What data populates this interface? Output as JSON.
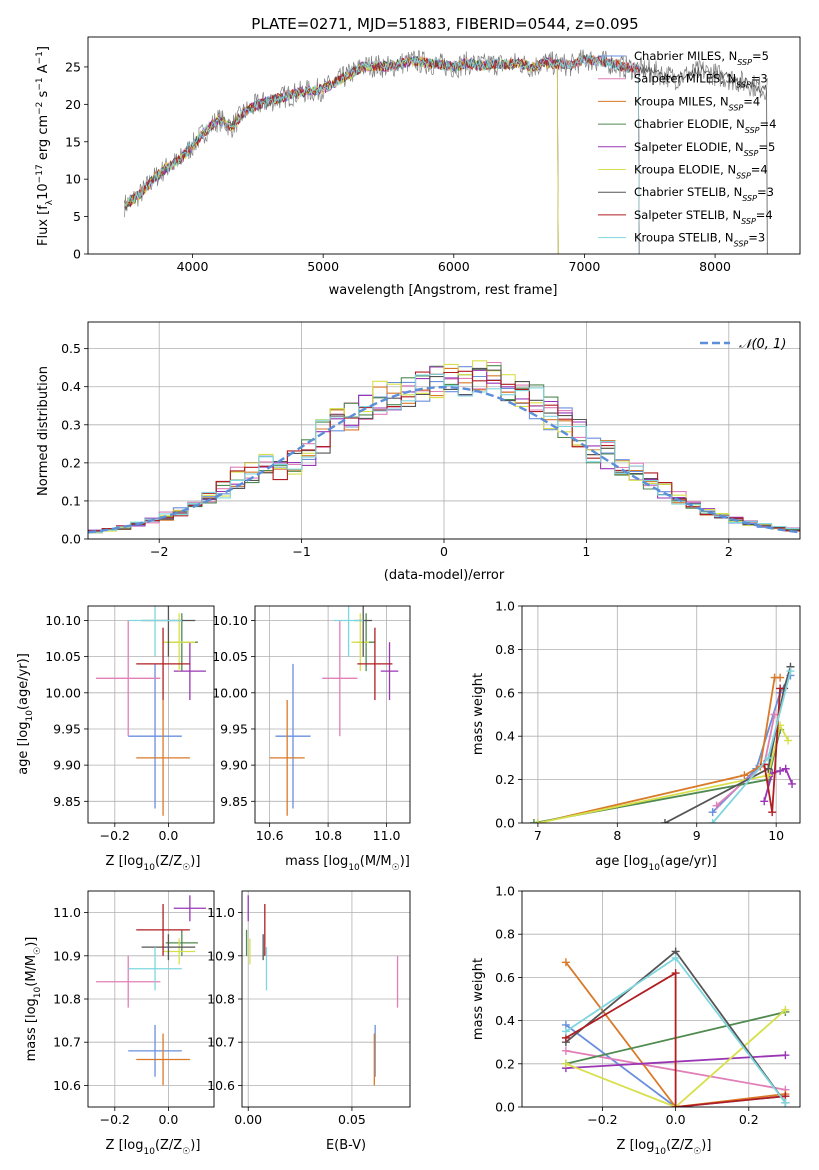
{
  "title": "PLATE=0271, MJD=51883, FIBERID=0544, z=0.095",
  "colors": {
    "chabrier_miles": "#6a8fdc",
    "salpeter_miles": "#e07fb8",
    "kroupa_miles": "#d97a28",
    "chabrier_elodie": "#4f8a4f",
    "salpeter_elodie": "#9a36b5",
    "kroupa_elodie": "#d7e04a",
    "chabrier_stelib": "#555555",
    "salpeter_stelib": "#b01e23",
    "kroupa_stelib": "#7fd6de",
    "data": "#808080",
    "normal_curve": "#5b8fd9"
  },
  "chart_data": [
    {
      "type": "line",
      "id": "spectrum",
      "xlabel": "wavelength [Angstrom, rest frame]",
      "ylabel_parts": [
        "Flux [f",
        "λ",
        "10",
        "−17",
        " erg cm",
        "−2",
        " s",
        "−1",
        " A",
        "−1",
        "]"
      ],
      "xlim": [
        3200,
        8650
      ],
      "ylim": [
        0,
        29
      ],
      "xticks": [
        4000,
        5000,
        6000,
        7000,
        8000
      ],
      "yticks": [
        0,
        5,
        10,
        15,
        20,
        25
      ],
      "grid": false,
      "legend_position": "upper right",
      "continuum": {
        "x": [
          3480,
          3600,
          3700,
          3800,
          3900,
          4000,
          4100,
          4200,
          4300,
          4400,
          4500,
          4600,
          4700,
          4800,
          4900,
          5000,
          5100,
          5200,
          5300,
          5400,
          5500,
          5600,
          5700,
          5800,
          5900,
          6000,
          6100,
          6200,
          6300,
          6400,
          6500,
          6600,
          6700,
          6800,
          6900,
          7000,
          7100,
          7200,
          7300,
          7400,
          7500,
          7600,
          7700,
          7800,
          7900,
          8000,
          8100,
          8200,
          8300,
          8400
        ],
        "y": [
          6.5,
          8.0,
          10.0,
          11.5,
          12.5,
          14.5,
          16.5,
          18.0,
          17.0,
          19.0,
          20.0,
          20.5,
          21.0,
          21.5,
          21.8,
          22.0,
          23.0,
          24.0,
          25.0,
          25.2,
          25.0,
          25.5,
          25.8,
          25.5,
          25.3,
          25.0,
          25.5,
          25.2,
          25.4,
          25.3,
          25.5,
          25.0,
          25.6,
          25.4,
          25.2,
          26.0,
          25.8,
          25.5,
          25.0,
          24.8,
          24.5,
          24.0,
          23.5,
          24.0,
          24.5,
          24.0,
          23.5,
          23.0,
          22.5,
          22.0
        ]
      },
      "series": [
        {
          "name": "Chabrier MILES, N",
          "sub": "SSP",
          "suffix": "=5",
          "color_key": "chabrier_miles",
          "x_range": [
            3480,
            7420
          ]
        },
        {
          "name": "Salpeter MILES, N",
          "sub": "SSP",
          "suffix": "=3",
          "color_key": "salpeter_miles",
          "x_range": [
            3480,
            7420
          ]
        },
        {
          "name": "Kroupa MILES, N",
          "sub": "SSP",
          "suffix": "=4",
          "color_key": "kroupa_miles",
          "x_range": [
            3480,
            7420
          ]
        },
        {
          "name": "Chabrier ELODIE, N",
          "sub": "SSP",
          "suffix": "=4",
          "color_key": "chabrier_elodie",
          "x_range": [
            3480,
            6800
          ]
        },
        {
          "name": "Salpeter ELODIE, N",
          "sub": "SSP",
          "suffix": "=5",
          "color_key": "salpeter_elodie",
          "x_range": [
            3480,
            6800
          ]
        },
        {
          "name": "Kroupa ELODIE, N",
          "sub": "SSP",
          "suffix": "=4",
          "color_key": "kroupa_elodie",
          "x_range": [
            3480,
            6800
          ]
        },
        {
          "name": "Chabrier STELIB, N",
          "sub": "SSP",
          "suffix": "=3",
          "color_key": "chabrier_stelib",
          "x_range": [
            3480,
            8400
          ]
        },
        {
          "name": "Salpeter STELIB, N",
          "sub": "SSP",
          "suffix": "=4",
          "color_key": "salpeter_stelib",
          "x_range": [
            3480,
            7420
          ]
        },
        {
          "name": "Kroupa STELIB, N",
          "sub": "SSP",
          "suffix": "=3",
          "color_key": "kroupa_stelib",
          "x_range": [
            3480,
            7420
          ]
        }
      ]
    },
    {
      "type": "bar",
      "id": "residual_histogram",
      "xlabel": "(data-model)/error",
      "ylabel": "Normed distribution",
      "xlim": [
        -2.5,
        2.5
      ],
      "ylim": [
        0,
        0.57
      ],
      "xticks": [
        -2,
        -1,
        0,
        1,
        2
      ],
      "yticks": [
        0.0,
        0.1,
        0.2,
        0.3,
        0.4,
        0.5
      ],
      "grid": true,
      "bin_edges": [
        -2.5,
        -2.4,
        -2.3,
        -2.2,
        -2.1,
        -2.0,
        -1.9,
        -1.8,
        -1.7,
        -1.6,
        -1.5,
        -1.4,
        -1.3,
        -1.2,
        -1.1,
        -1.0,
        -0.9,
        -0.8,
        -0.7,
        -0.6,
        -0.5,
        -0.4,
        -0.3,
        -0.2,
        -0.1,
        0.0,
        0.1,
        0.2,
        0.3,
        0.4,
        0.5,
        0.6,
        0.7,
        0.8,
        0.9,
        1.0,
        1.1,
        1.2,
        1.3,
        1.4,
        1.5,
        1.6,
        1.7,
        1.8,
        1.9,
        2.0,
        2.1,
        2.2,
        2.3,
        2.4,
        2.5
      ],
      "base_values": [
        0.02,
        0.025,
        0.03,
        0.04,
        0.05,
        0.06,
        0.07,
        0.09,
        0.11,
        0.13,
        0.16,
        0.18,
        0.19,
        0.19,
        0.2,
        0.23,
        0.27,
        0.3,
        0.33,
        0.35,
        0.37,
        0.38,
        0.39,
        0.4,
        0.41,
        0.42,
        0.42,
        0.43,
        0.42,
        0.4,
        0.38,
        0.36,
        0.33,
        0.3,
        0.27,
        0.24,
        0.22,
        0.19,
        0.17,
        0.15,
        0.13,
        0.11,
        0.09,
        0.07,
        0.06,
        0.05,
        0.04,
        0.035,
        0.03,
        0.025
      ],
      "normal_curve": {
        "name": "𝒩(0, 1)",
        "mean": 0,
        "sigma": 1
      },
      "legend_position": "upper right"
    },
    {
      "type": "scatter",
      "id": "age_vs_Z",
      "xlabel_parts": [
        "Z [log",
        "10",
        "(Z/Z",
        "☉",
        ")]"
      ],
      "ylabel_parts": [
        "age  [log",
        "10",
        "(age/yr)]"
      ],
      "xlim": [
        -0.3,
        0.17
      ],
      "ylim": [
        9.82,
        10.12
      ],
      "xticks": [
        -0.2,
        0.0
      ],
      "yticks": [
        9.85,
        9.9,
        9.95,
        10.0,
        10.05,
        10.1
      ],
      "grid": true
    },
    {
      "type": "scatter",
      "id": "age_vs_mass",
      "xlabel_parts": [
        "mass [log",
        "10",
        "(M/M",
        "☉",
        ")]"
      ],
      "xlim": [
        10.55,
        11.08
      ],
      "ylim": [
        9.82,
        10.12
      ],
      "xticks": [
        10.6,
        10.8,
        11.0
      ],
      "yticks": [
        9.85,
        9.9,
        9.95,
        10.0,
        10.05,
        10.1
      ],
      "grid": true
    },
    {
      "type": "line",
      "id": "massweight_vs_age",
      "xlabel_parts": [
        "age  [log",
        "10",
        "(age/yr)]"
      ],
      "ylabel": "mass weight",
      "xlim": [
        6.8,
        10.3
      ],
      "ylim": [
        0,
        1.0
      ],
      "xticks": [
        7,
        8,
        9,
        10
      ],
      "yticks": [
        0.0,
        0.2,
        0.4,
        0.6,
        0.8,
        1.0
      ],
      "grid": true
    },
    {
      "type": "scatter",
      "id": "mass_vs_Z",
      "xlabel_parts": [
        "Z [log",
        "10",
        "(Z/Z",
        "☉",
        ")]"
      ],
      "ylabel_parts": [
        "mass [log",
        "10",
        "(M/M",
        "☉",
        ")]"
      ],
      "xlim": [
        -0.3,
        0.17
      ],
      "ylim": [
        10.55,
        11.05
      ],
      "xticks": [
        -0.2,
        0.0
      ],
      "yticks": [
        10.6,
        10.7,
        10.8,
        10.9,
        11.0
      ],
      "grid": true
    },
    {
      "type": "scatter",
      "id": "mass_vs_EBV",
      "xlabel": "E(B-V)",
      "xlim": [
        -0.003,
        0.078
      ],
      "ylim": [
        10.55,
        11.05
      ],
      "xticks": [
        0.0,
        0.05
      ],
      "yticks": [
        10.6,
        10.7,
        10.8,
        10.9,
        11.0
      ],
      "grid": true
    },
    {
      "type": "line",
      "id": "massweight_vs_Z",
      "xlabel_parts": [
        "Z [log",
        "10",
        "(Z/Z",
        "☉",
        ")]"
      ],
      "ylabel": "mass weight",
      "xlim": [
        -0.42,
        0.34
      ],
      "ylim": [
        0,
        1.0
      ],
      "xticks": [
        -0.2,
        0.0,
        0.2
      ],
      "yticks": [
        0.0,
        0.2,
        0.4,
        0.6,
        0.8,
        1.0
      ],
      "grid": true
    }
  ],
  "fits": [
    {
      "color_key": "chabrier_miles",
      "Z": -0.05,
      "Z_err": 0.1,
      "age": 9.94,
      "age_err": 0.1,
      "mass": 10.68,
      "mass_err": 0.06,
      "ebv": 0.062,
      "ebv_err": 0.0,
      "age_weights": [
        [
          9.2,
          0.05
        ],
        [
          9.75,
          0.25
        ],
        [
          10.05,
          0.6
        ],
        [
          10.18,
          0.68
        ]
      ],
      "Z_weights": [
        [
          -0.3,
          0.38
        ],
        [
          0.0,
          0.0
        ],
        [
          0.3,
          0.05
        ]
      ]
    },
    {
      "color_key": "salpeter_miles",
      "Z": -0.15,
      "Z_err": 0.12,
      "age": 10.02,
      "age_err": 0.08,
      "mass": 10.84,
      "mass_err": 0.06,
      "ebv": 0.072,
      "ebv_err": 0.0,
      "age_weights": [
        [
          9.25,
          0.08
        ],
        [
          9.85,
          0.27
        ],
        [
          9.98,
          0.5
        ]
      ],
      "Z_weights": [
        [
          -0.3,
          0.26
        ],
        [
          0.3,
          0.08
        ]
      ]
    },
    {
      "color_key": "kroupa_miles",
      "Z": -0.02,
      "Z_err": 0.1,
      "age": 9.91,
      "age_err": 0.08,
      "mass": 10.66,
      "mass_err": 0.06,
      "ebv": 0.06,
      "ebv_err": 0.0,
      "age_weights": [
        [
          7.0,
          0.0
        ],
        [
          9.6,
          0.22
        ],
        [
          9.8,
          0.26
        ],
        [
          9.98,
          0.67
        ],
        [
          10.05,
          0.67
        ]
      ],
      "Z_weights": [
        [
          -0.3,
          0.67
        ],
        [
          0.0,
          0.0
        ],
        [
          0.3,
          0.06
        ]
      ]
    },
    {
      "color_key": "chabrier_elodie",
      "Z": 0.05,
      "Z_err": 0.06,
      "age": 10.07,
      "age_err": 0.04,
      "mass": 10.93,
      "mass_err": 0.03,
      "ebv": 0.0,
      "ebv_err": 0.0,
      "age_weights": [
        [
          6.95,
          0.0
        ],
        [
          9.9,
          0.2
        ],
        [
          10.05,
          0.43
        ]
      ],
      "Z_weights": [
        [
          -0.3,
          0.2
        ],
        [
          0.3,
          0.44
        ]
      ]
    },
    {
      "color_key": "salpeter_elodie",
      "Z": 0.08,
      "Z_err": 0.06,
      "age": 10.03,
      "age_err": 0.04,
      "mass": 11.01,
      "mass_err": 0.03,
      "ebv": 0.0,
      "ebv_err": 0.0,
      "age_weights": [
        [
          9.85,
          0.1
        ],
        [
          9.95,
          0.23
        ],
        [
          10.05,
          0.24
        ],
        [
          10.12,
          0.25
        ],
        [
          10.2,
          0.18
        ]
      ],
      "Z_weights": [
        [
          -0.3,
          0.18
        ],
        [
          0.3,
          0.24
        ]
      ]
    },
    {
      "color_key": "kroupa_elodie",
      "Z": 0.04,
      "Z_err": 0.06,
      "age": 10.07,
      "age_err": 0.04,
      "mass": 10.91,
      "mass_err": 0.03,
      "ebv": 0.0,
      "ebv_err": 0.0,
      "age_weights": [
        [
          7.0,
          0.0
        ],
        [
          9.9,
          0.22
        ],
        [
          10.05,
          0.45
        ],
        [
          10.15,
          0.38
        ]
      ],
      "Z_weights": [
        [
          -0.3,
          0.2
        ],
        [
          0.0,
          0.0
        ],
        [
          0.3,
          0.45
        ]
      ]
    },
    {
      "color_key": "chabrier_stelib",
      "Z": 0.0,
      "Z_err": 0.1,
      "age": 10.1,
      "age_err": 0.05,
      "mass": 10.92,
      "mass_err": 0.03,
      "ebv": 0.008,
      "ebv_err": 0.0,
      "age_weights": [
        [
          8.6,
          0.0
        ],
        [
          9.9,
          0.25
        ],
        [
          10.1,
          0.62
        ],
        [
          10.18,
          0.72
        ]
      ],
      "Z_weights": [
        [
          -0.3,
          0.3
        ],
        [
          0.0,
          0.72
        ],
        [
          0.3,
          0.02
        ]
      ]
    },
    {
      "color_key": "salpeter_stelib",
      "Z": -0.02,
      "Z_err": 0.1,
      "age": 10.04,
      "age_err": 0.05,
      "mass": 10.96,
      "mass_err": 0.06,
      "ebv": 0.008,
      "ebv_err": 0.0,
      "age_weights": [
        [
          9.85,
          0.27
        ],
        [
          9.95,
          0.05
        ],
        [
          10.05,
          0.62
        ]
      ],
      "Z_weights": [
        [
          -0.3,
          0.32
        ],
        [
          0.0,
          0.62
        ],
        [
          0.0,
          0.0
        ],
        [
          0.3,
          0.05
        ]
      ]
    },
    {
      "color_key": "kroupa_stelib",
      "Z": -0.05,
      "Z_err": 0.1,
      "age": 10.1,
      "age_err": 0.05,
      "mass": 10.87,
      "mass_err": 0.05,
      "ebv": 0.008,
      "ebv_err": 0.0,
      "age_weights": [
        [
          9.2,
          0.0
        ],
        [
          9.9,
          0.3
        ],
        [
          10.18,
          0.7
        ]
      ],
      "Z_weights": [
        [
          -0.3,
          0.35
        ],
        [
          0.0,
          0.69
        ],
        [
          0.3,
          0.02
        ]
      ]
    }
  ]
}
